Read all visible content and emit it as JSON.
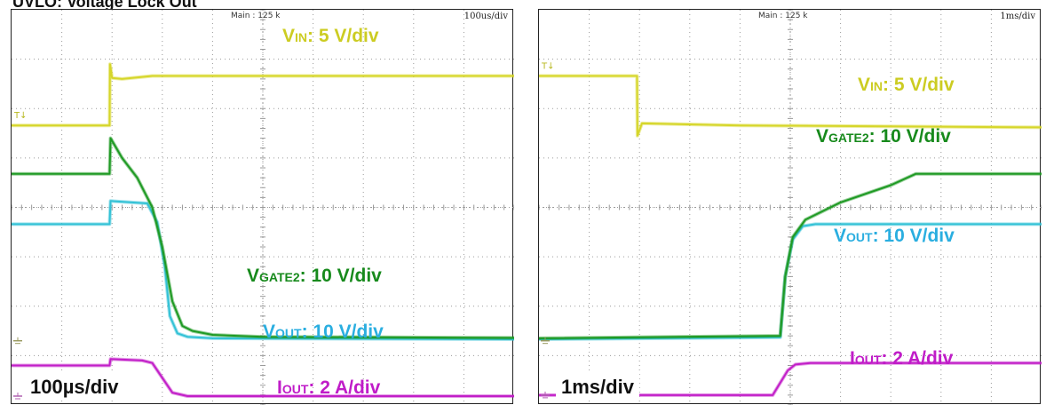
{
  "page": {
    "title": "UVLO: Voltage Lock Out"
  },
  "colors": {
    "vin": "#d6d62a",
    "vgate": "#1f9a24",
    "vout": "#33c2d6",
    "iout": "#c21fc8",
    "vin_label": "#cccc22",
    "vgate_label": "#178a1c",
    "vout_label": "#2aaee0",
    "iout_label": "#c01cc8",
    "grid": "#9a9a9a"
  },
  "chart_data": [
    {
      "type": "line",
      "id": "left-scope",
      "header": "Main : 125 k",
      "timebase_text": "100us/div",
      "timebase_label": "100µs/div",
      "x_units": "div",
      "y_units": "div",
      "xlim": [
        0,
        10
      ],
      "ylim": [
        0,
        8
      ],
      "channel_labels": [
        {
          "key": "vin",
          "main": "V",
          "sub": "IN",
          "rest": ": 5 V/div"
        },
        {
          "key": "vgate",
          "main": "V",
          "sub": "GATE2",
          "rest": ": 10 V/div"
        },
        {
          "key": "vout",
          "main": "V",
          "sub": "OUT",
          "rest": ": 10 V/div"
        },
        {
          "key": "iout",
          "main": "I",
          "sub": "OUT",
          "rest": ": 2 A/div"
        }
      ],
      "series": [
        {
          "key": "vin",
          "x": [
            0,
            1.95,
            1.96,
            2.0,
            2.2,
            2.8,
            10
          ],
          "y": [
            5.66,
            5.66,
            6.9,
            6.62,
            6.6,
            6.66,
            6.66
          ]
        },
        {
          "key": "vgate",
          "x": [
            0,
            1.95,
            1.97,
            2.2,
            2.5,
            2.8,
            3.0,
            3.2,
            3.4,
            3.6,
            4.0,
            5.0,
            10
          ],
          "y": [
            4.68,
            4.68,
            5.4,
            5.0,
            4.6,
            4.0,
            3.2,
            2.1,
            1.6,
            1.5,
            1.42,
            1.38,
            1.36
          ]
        },
        {
          "key": "vout",
          "x": [
            0,
            1.95,
            1.97,
            2.7,
            2.9,
            3.05,
            3.15,
            3.3,
            3.5,
            4.0,
            10
          ],
          "y": [
            3.66,
            3.66,
            4.13,
            4.08,
            3.7,
            2.8,
            1.8,
            1.45,
            1.38,
            1.35,
            1.33
          ]
        },
        {
          "key": "iout",
          "x": [
            0,
            1.95,
            1.97,
            2.6,
            2.8,
            3.0,
            3.2,
            3.5,
            10
          ],
          "y": [
            0.8,
            0.8,
            0.93,
            0.9,
            0.85,
            0.55,
            0.25,
            0.18,
            0.18
          ]
        }
      ],
      "ground_markers_y": [
        1.3,
        0.18
      ]
    },
    {
      "type": "line",
      "id": "right-scope",
      "header": "Main : 125 k",
      "timebase_text": "1ms/div",
      "timebase_label": "1ms/div",
      "x_units": "div",
      "y_units": "div",
      "xlim": [
        0,
        10
      ],
      "ylim": [
        0,
        8
      ],
      "channel_labels": [
        {
          "key": "vin",
          "main": "V",
          "sub": "IN",
          "rest": ": 5 V/div"
        },
        {
          "key": "vgate",
          "main": "V",
          "sub": "GATE2",
          "rest": ": 10 V/div"
        },
        {
          "key": "vout",
          "main": "V",
          "sub": "OUT",
          "rest": ": 10 V/div"
        },
        {
          "key": "iout",
          "main": "I",
          "sub": "OUT",
          "rest": ": 2 A/div"
        }
      ],
      "series": [
        {
          "key": "vin",
          "x": [
            0,
            1.95,
            1.96,
            2.05,
            4.0,
            10
          ],
          "y": [
            6.66,
            6.66,
            5.45,
            5.7,
            5.66,
            5.62
          ]
        },
        {
          "key": "vgate",
          "x": [
            0,
            4.8,
            4.9,
            5.05,
            5.3,
            6.0,
            7.0,
            7.5,
            10
          ],
          "y": [
            1.35,
            1.4,
            2.6,
            3.4,
            3.75,
            4.1,
            4.45,
            4.68,
            4.68
          ]
        },
        {
          "key": "vout",
          "x": [
            0,
            4.8,
            4.9,
            5.05,
            5.25,
            5.5,
            10
          ],
          "y": [
            1.33,
            1.37,
            2.6,
            3.35,
            3.62,
            3.66,
            3.66
          ]
        },
        {
          "key": "iout",
          "x": [
            0,
            4.65,
            4.8,
            4.95,
            5.1,
            5.4,
            10
          ],
          "y": [
            0.2,
            0.2,
            0.45,
            0.7,
            0.82,
            0.85,
            0.85
          ]
        }
      ],
      "ground_markers_y": [
        1.3,
        0.2
      ]
    }
  ]
}
